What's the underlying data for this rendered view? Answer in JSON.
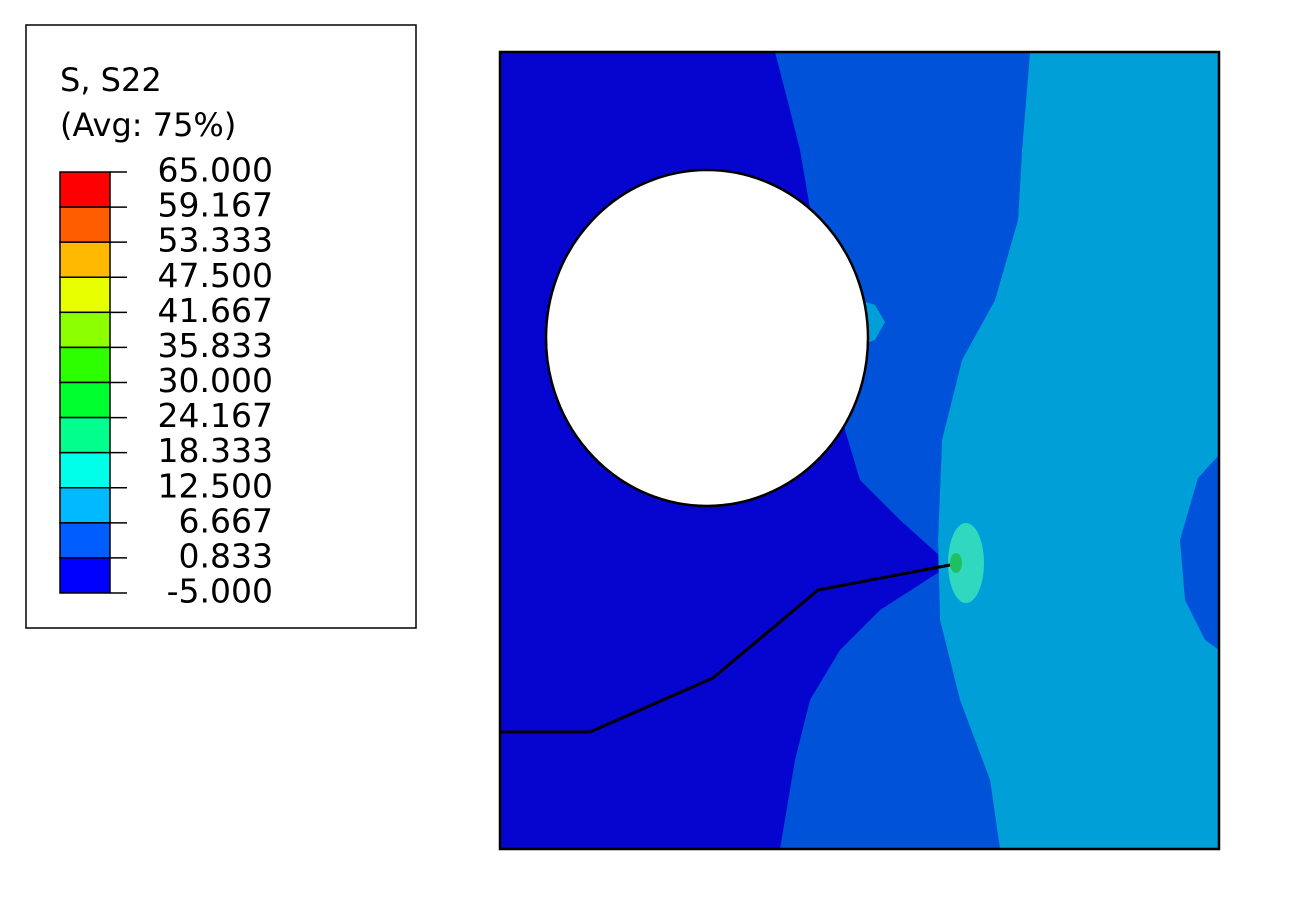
{
  "legend": {
    "title": "S, S22",
    "subtitle": "(Avg: 75%)",
    "levels": [
      "65.000",
      "59.167",
      "53.333",
      "47.500",
      "41.667",
      "35.833",
      "30.000",
      "24.167",
      "18.333",
      "12.500",
      "6.667",
      "0.833",
      "-5.000"
    ],
    "colors": [
      "#ff0000",
      "#ff5d00",
      "#ffb900",
      "#e8ff00",
      "#8cff00",
      "#2eff00",
      "#00ff2e",
      "#00ff8c",
      "#00ffe8",
      "#00b9ff",
      "#005dff",
      "#0000ff"
    ]
  }
}
